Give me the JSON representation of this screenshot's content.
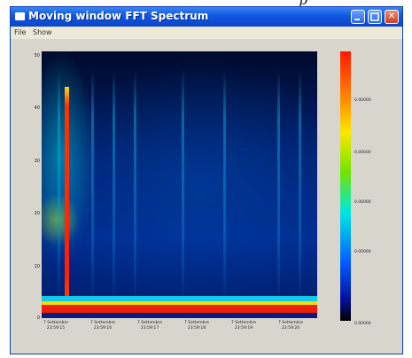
{
  "page": {
    "caption_fragment": "p"
  },
  "window": {
    "title": "Moving window FFT Spectrum",
    "icon": "window-app-icon",
    "controls": {
      "minimize_icon": "minimize-icon",
      "maximize_icon": "maximize-icon",
      "close_icon": "close-icon",
      "close_glyph": "✕"
    }
  },
  "menu": {
    "items": [
      {
        "label": "File"
      },
      {
        "label": "Show"
      }
    ]
  },
  "spectrogram": {
    "y_ticks": [
      "50",
      "40",
      "30",
      "20",
      "10",
      "0"
    ],
    "x_ticks": [
      [
        "7 Settembre",
        "23:59:15"
      ],
      [
        "7 Settembre",
        "23:59:16"
      ],
      [
        "7 Settembre",
        "23:59:17"
      ],
      [
        "7 Settembre",
        "23:59:18"
      ],
      [
        "7 Settembre",
        "23:59:19"
      ],
      [
        "7 Settembre",
        "23:59:20"
      ]
    ],
    "colorbar": {
      "ticks": [
        "0.00000",
        "0.00000",
        "0.00000",
        "0.00000",
        "0.00000"
      ],
      "colors": [
        "#ff1a00",
        "#ff8c00",
        "#ffe600",
        "#6ee600",
        "#00e6e6",
        "#0060ff",
        "#0010a0",
        "#000000"
      ]
    }
  }
}
